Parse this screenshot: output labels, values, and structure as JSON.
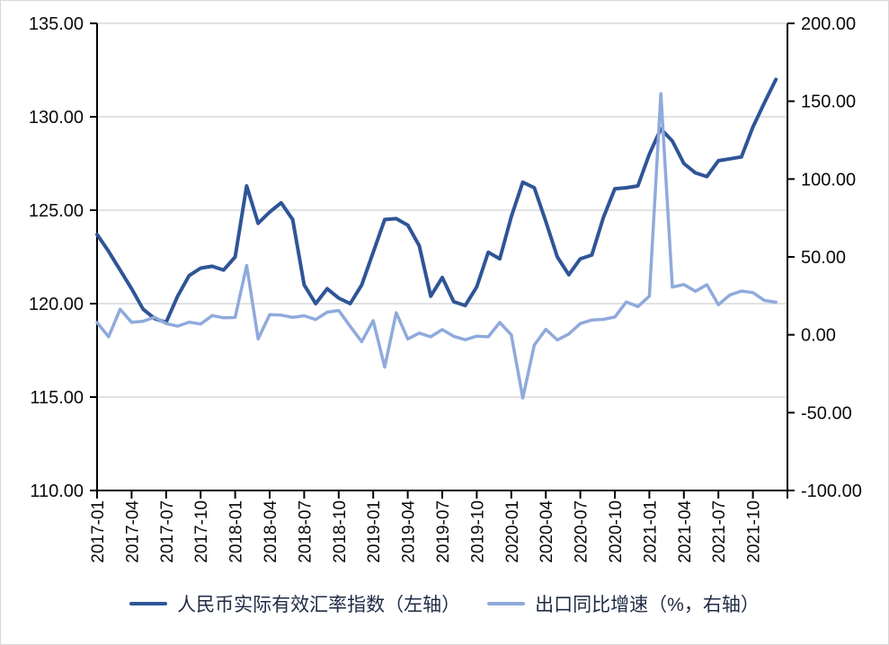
{
  "chart_data": {
    "type": "line",
    "title": "",
    "grid": true,
    "legend_position": "bottom",
    "x": [
      "2017-01",
      "2017-02",
      "2017-03",
      "2017-04",
      "2017-05",
      "2017-06",
      "2017-07",
      "2017-08",
      "2017-09",
      "2017-10",
      "2017-11",
      "2017-12",
      "2018-01",
      "2018-02",
      "2018-03",
      "2018-04",
      "2018-05",
      "2018-06",
      "2018-07",
      "2018-08",
      "2018-09",
      "2018-10",
      "2018-11",
      "2018-12",
      "2019-01",
      "2019-02",
      "2019-03",
      "2019-04",
      "2019-05",
      "2019-06",
      "2019-07",
      "2019-08",
      "2019-09",
      "2019-10",
      "2019-11",
      "2019-12",
      "2020-01",
      "2020-02",
      "2020-03",
      "2020-04",
      "2020-05",
      "2020-06",
      "2020-07",
      "2020-08",
      "2020-09",
      "2020-10",
      "2020-11",
      "2020-12",
      "2021-01",
      "2021-02",
      "2021-03",
      "2021-04",
      "2021-05",
      "2021-06",
      "2021-07",
      "2021-08",
      "2021-09",
      "2021-10",
      "2021-11",
      "2021-12"
    ],
    "x_tick_interval": 3,
    "left_axis": {
      "min": 110,
      "max": 135,
      "tick_values": [
        135,
        130,
        125,
        120,
        115,
        110
      ]
    },
    "right_axis": {
      "min": -100,
      "max": 200,
      "tick_values": [
        200,
        150,
        100,
        50,
        0,
        -50,
        -100
      ]
    },
    "series": [
      {
        "name": "人民币实际有效汇率指数（左轴）",
        "axis": "left",
        "color": "#2F5597",
        "width": 4,
        "values": [
          123.7,
          122.8,
          121.8,
          120.8,
          119.7,
          119.2,
          119.0,
          120.4,
          121.5,
          121.9,
          122.0,
          121.8,
          122.5,
          126.3,
          124.3,
          124.9,
          125.4,
          124.5,
          121.0,
          120.0,
          120.8,
          120.3,
          120.0,
          121.0,
          122.75,
          124.5,
          124.55,
          124.2,
          123.1,
          120.4,
          121.4,
          120.1,
          119.9,
          120.9,
          122.75,
          122.4,
          124.65,
          126.5,
          126.2,
          124.4,
          122.5,
          121.55,
          122.4,
          122.6,
          124.6,
          126.15,
          126.2,
          126.3,
          128.0,
          129.35,
          128.7,
          127.5,
          127.0,
          126.8,
          127.65,
          127.75,
          127.85,
          129.45,
          130.75,
          132.0
        ]
      },
      {
        "name": "出口同比增速（%，右轴）",
        "axis": "right",
        "color": "#8FAADC",
        "width": 3.5,
        "values": [
          7.9,
          -1.3,
          16.4,
          8.0,
          8.7,
          11.3,
          7.2,
          5.5,
          8.1,
          6.9,
          12.3,
          10.9,
          11.1,
          44.5,
          -2.7,
          12.9,
          12.6,
          11.2,
          12.2,
          9.8,
          14.5,
          15.6,
          5.4,
          -4.4,
          9.1,
          -20.8,
          14.2,
          -2.7,
          1.1,
          -1.3,
          3.3,
          -1.0,
          -3.2,
          -0.9,
          -1.3,
          7.9,
          0.0,
          -40.6,
          -6.6,
          3.5,
          -3.3,
          0.5,
          7.2,
          9.5,
          9.9,
          11.4,
          21.1,
          18.1,
          24.8,
          154.9,
          30.6,
          32.3,
          27.9,
          32.2,
          19.3,
          25.6,
          28.1,
          27.1,
          22.0,
          20.9
        ]
      }
    ]
  }
}
